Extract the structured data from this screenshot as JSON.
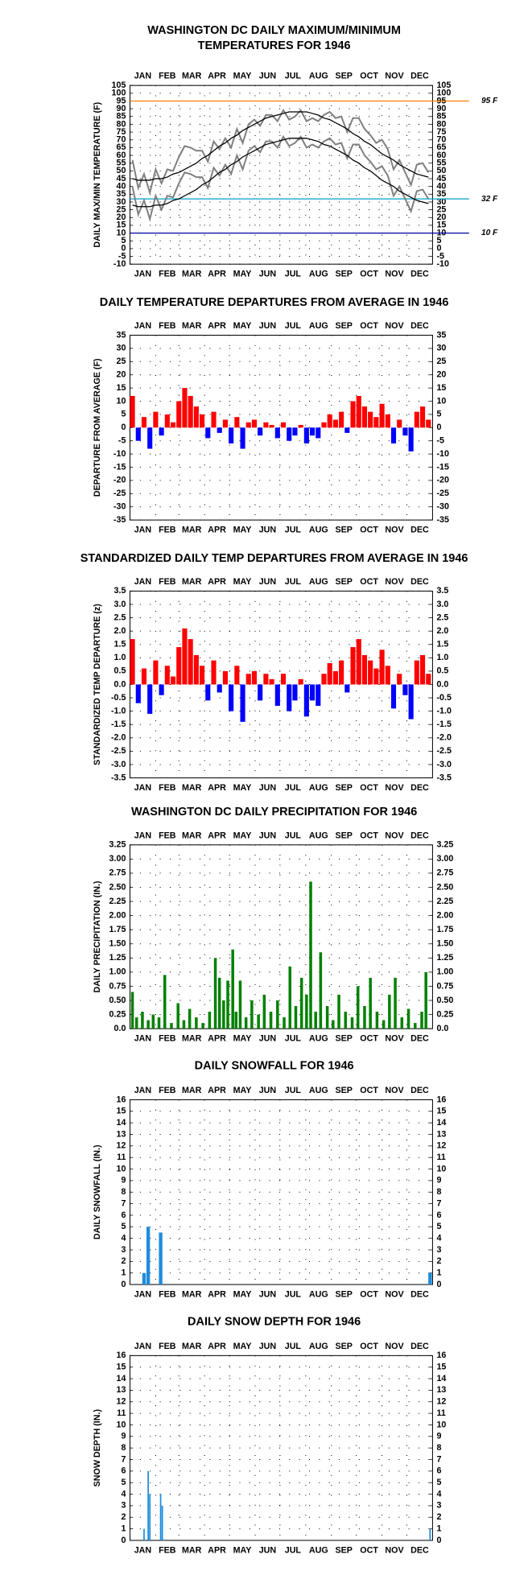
{
  "chart_data": [
    {
      "type": "line",
      "title": [
        "WASHINGTON DC DAILY MAXIMUM/MINIMUM",
        "TEMPERATURES FOR 1946"
      ],
      "y_label": "DAILY MAX/MIN TEMPERATURE (F)",
      "categories": [
        "JAN",
        "FEB",
        "MAR",
        "APR",
        "MAY",
        "JUN",
        "JUL",
        "AUG",
        "SEP",
        "OCT",
        "NOV",
        "DEC"
      ],
      "xlim": [
        0,
        365
      ],
      "x": [
        3,
        10,
        17,
        24,
        31,
        38,
        45,
        52,
        59,
        66,
        73,
        80,
        87,
        94,
        101,
        108,
        115,
        122,
        129,
        136,
        143,
        150,
        157,
        164,
        171,
        178,
        185,
        192,
        199,
        206,
        213,
        220,
        227,
        234,
        241,
        248,
        255,
        262,
        269,
        276,
        283,
        290,
        297,
        304,
        311,
        318,
        325,
        332,
        339,
        346,
        353,
        360
      ],
      "series": [
        {
          "color": "#808080",
          "values": [
            57,
            39,
            48,
            36,
            51,
            42,
            51,
            50,
            59,
            66,
            65,
            63,
            63,
            56,
            69,
            64,
            71,
            65,
            77,
            68,
            80,
            83,
            79,
            86,
            86,
            82,
            89,
            83,
            85,
            89,
            82,
            84,
            82,
            86,
            88,
            84,
            85,
            75,
            84,
            84,
            77,
            73,
            68,
            70,
            64,
            51,
            57,
            49,
            41,
            54,
            55,
            49
          ]
        },
        {
          "color": "#808080",
          "values": [
            40,
            22,
            31,
            19,
            34,
            25,
            34,
            33,
            42,
            49,
            48,
            46,
            46,
            39,
            52,
            47,
            54,
            48,
            60,
            51,
            63,
            66,
            62,
            69,
            69,
            65,
            72,
            66,
            68,
            72,
            65,
            67,
            65,
            69,
            71,
            67,
            68,
            58,
            67,
            67,
            60,
            56,
            51,
            53,
            47,
            34,
            40,
            32,
            24,
            37,
            38,
            32
          ]
        },
        {
          "color": "#000000",
          "values": [
            45,
            44,
            44,
            44,
            45,
            45,
            46,
            48,
            49,
            51,
            53,
            55,
            58,
            60,
            63,
            66,
            68,
            71,
            73,
            76,
            78,
            80,
            82,
            84,
            85,
            86,
            87,
            88,
            88,
            88,
            88,
            87,
            86,
            84,
            83,
            81,
            79,
            77,
            74,
            72,
            69,
            67,
            64,
            61,
            59,
            57,
            54,
            52,
            50,
            48,
            47,
            46
          ]
        },
        {
          "color": "#000000",
          "values": [
            28,
            27,
            27,
            27,
            28,
            28,
            29,
            31,
            32,
            34,
            36,
            38,
            41,
            43,
            46,
            49,
            51,
            54,
            56,
            59,
            61,
            63,
            65,
            67,
            68,
            69,
            70,
            71,
            71,
            71,
            71,
            70,
            69,
            67,
            66,
            64,
            62,
            60,
            57,
            55,
            52,
            50,
            47,
            44,
            42,
            40,
            37,
            35,
            33,
            31,
            30,
            29
          ]
        }
      ],
      "reference_lines": [
        {
          "value": 95,
          "label": "95 F",
          "color": "#ff8000"
        },
        {
          "value": 32,
          "label": "32 F",
          "color": "#00a0c8"
        },
        {
          "value": 10,
          "label": "10 F",
          "color": "#0000a0"
        }
      ],
      "ylim": [
        -10,
        105
      ],
      "yticks": [
        -10,
        -5,
        0,
        5,
        10,
        15,
        20,
        25,
        30,
        35,
        40,
        45,
        50,
        55,
        60,
        65,
        70,
        75,
        80,
        85,
        90,
        95,
        100,
        105
      ],
      "grid": true
    },
    {
      "type": "bar",
      "title": "DAILY TEMPERATURE DEPARTURES FROM AVERAGE IN 1946",
      "y_label": "DEPARTURE FROM AVERAGE (F)",
      "categories": [
        "JAN",
        "FEB",
        "MAR",
        "APR",
        "MAY",
        "JUN",
        "JUL",
        "AUG",
        "SEP",
        "OCT",
        "NOV",
        "DEC"
      ],
      "xlim": [
        0,
        365
      ],
      "x": [
        3,
        10,
        17,
        24,
        31,
        38,
        45,
        52,
        59,
        66,
        73,
        80,
        87,
        94,
        101,
        108,
        115,
        122,
        129,
        136,
        143,
        150,
        157,
        164,
        171,
        178,
        185,
        192,
        199,
        206,
        213,
        220,
        227,
        234,
        241,
        248,
        255,
        262,
        269,
        276,
        283,
        290,
        297,
        304,
        311,
        318,
        325,
        332,
        339,
        346,
        353,
        360
      ],
      "values": [
        12,
        -5,
        4,
        -8,
        6,
        -3,
        5,
        2,
        10,
        15,
        12,
        8,
        5,
        -4,
        6,
        -2,
        3,
        -6,
        4,
        -8,
        2,
        3,
        -3,
        2,
        1,
        -4,
        2,
        -5,
        -3,
        1,
        -6,
        -3,
        -4,
        2,
        5,
        3,
        6,
        -2,
        10,
        12,
        8,
        6,
        4,
        9,
        5,
        -6,
        3,
        -3,
        -9,
        6,
        8,
        3
      ],
      "color": "#ff0000",
      "color_negative": "#0000ff",
      "ylim": [
        -35,
        35
      ],
      "yticks": [
        -35,
        -30,
        -25,
        -20,
        -15,
        -10,
        -5,
        0,
        5,
        10,
        15,
        20,
        25,
        30,
        35
      ],
      "grid": true
    },
    {
      "type": "bar",
      "title": "STANDARDIZED DAILY TEMP DEPARTURES FROM AVERAGE IN 1946",
      "y_label": "STANDARDIZED TEMP DEPARTURE (z)",
      "categories": [
        "JAN",
        "FEB",
        "MAR",
        "APR",
        "MAY",
        "JUN",
        "JUL",
        "AUG",
        "SEP",
        "OCT",
        "NOV",
        "DEC"
      ],
      "xlim": [
        0,
        365
      ],
      "x": [
        3,
        10,
        17,
        24,
        31,
        38,
        45,
        52,
        59,
        66,
        73,
        80,
        87,
        94,
        101,
        108,
        115,
        122,
        129,
        136,
        143,
        150,
        157,
        164,
        171,
        178,
        185,
        192,
        199,
        206,
        213,
        220,
        227,
        234,
        241,
        248,
        255,
        262,
        269,
        276,
        283,
        290,
        297,
        304,
        311,
        318,
        325,
        332,
        339,
        346,
        353,
        360
      ],
      "values": [
        1.7,
        -0.7,
        0.6,
        -1.1,
        0.9,
        -0.4,
        0.7,
        0.3,
        1.4,
        2.1,
        1.7,
        1.1,
        0.7,
        -0.6,
        0.9,
        -0.3,
        0.5,
        -1.0,
        0.7,
        -1.4,
        0.4,
        0.5,
        -0.6,
        0.4,
        0.2,
        -0.8,
        0.4,
        -1.0,
        -0.6,
        0.2,
        -1.2,
        -0.6,
        -0.8,
        0.4,
        0.8,
        0.5,
        0.9,
        -0.3,
        1.4,
        1.7,
        1.1,
        0.9,
        0.6,
        1.3,
        0.7,
        -0.9,
        0.4,
        -0.4,
        -1.3,
        0.9,
        1.1,
        0.4
      ],
      "color": "#ff0000",
      "color_negative": "#0000ff",
      "ylim": [
        -3.5,
        3.5
      ],
      "yticks": [
        -3.5,
        {
          "value": -3,
          "label": "-3.0"
        },
        -2.5,
        {
          "value": -2,
          "label": "-2.0"
        },
        -1.5,
        {
          "value": -1,
          "label": "-1.0"
        },
        -0.5,
        {
          "value": 0,
          "label": "0.0"
        },
        0.5,
        {
          "value": 1,
          "label": "1.0"
        },
        1.5,
        {
          "value": 2,
          "label": "2.0"
        },
        2.5,
        {
          "value": 3,
          "label": "3.0"
        },
        3.5
      ],
      "grid": true
    },
    {
      "type": "bar",
      "title": "WASHINGTON DC DAILY PRECIPITATION FOR 1946",
      "y_label": "DAILY PRECIPITATION (IN.)",
      "categories": [
        "JAN",
        "FEB",
        "MAR",
        "APR",
        "MAY",
        "JUN",
        "JUL",
        "AUG",
        "SEP",
        "OCT",
        "NOV",
        "DEC"
      ],
      "xlim": [
        0,
        365
      ],
      "x": [
        3,
        8,
        15,
        22,
        28,
        35,
        42,
        50,
        58,
        65,
        72,
        80,
        88,
        96,
        103,
        108,
        113,
        118,
        124,
        128,
        133,
        140,
        147,
        155,
        162,
        170,
        178,
        186,
        193,
        200,
        207,
        213,
        218,
        224,
        230,
        238,
        245,
        252,
        260,
        268,
        275,
        283,
        290,
        298,
        306,
        313,
        320,
        328,
        336,
        344,
        352,
        357
      ],
      "values": [
        0.65,
        0.2,
        0.3,
        0.15,
        0.25,
        0.2,
        0.95,
        0.1,
        0.45,
        0.15,
        0.35,
        0.2,
        0.1,
        0.3,
        1.25,
        0.9,
        0.5,
        0.85,
        1.4,
        0.3,
        0.85,
        0.2,
        0.5,
        0.25,
        0.6,
        0.3,
        0.5,
        0.2,
        1.1,
        0.4,
        0.9,
        0.6,
        2.6,
        0.3,
        1.35,
        0.4,
        0.15,
        0.6,
        0.3,
        0.2,
        0.75,
        0.4,
        0.9,
        0.3,
        0.15,
        0.6,
        0.9,
        0.2,
        0.35,
        0.1,
        0.3,
        1.0
      ],
      "color": "#008000",
      "ylim": [
        0,
        3.25
      ],
      "yticks": [
        {
          "value": 0,
          "label": "0.0"
        },
        0.25,
        {
          "value": 0.5,
          "label": "0.50"
        },
        0.75,
        {
          "value": 1,
          "label": "1.00"
        },
        1.25,
        {
          "value": 1.5,
          "label": "1.50"
        },
        1.75,
        {
          "value": 2,
          "label": "2.00"
        },
        2.25,
        {
          "value": 2.5,
          "label": "2.50"
        },
        2.75,
        {
          "value": 3,
          "label": "3.00"
        },
        3.25
      ],
      "grid": true
    },
    {
      "type": "bar",
      "title": "DAILY SNOWFALL FOR 1946",
      "y_label": "DAILY SNOWFALL (IN.)",
      "categories": [
        "JAN",
        "FEB",
        "MAR",
        "APR",
        "MAY",
        "JUN",
        "JUL",
        "AUG",
        "SEP",
        "OCT",
        "NOV",
        "DEC"
      ],
      "xlim": [
        0,
        365
      ],
      "x": [
        17,
        22,
        37,
        362
      ],
      "values": [
        1,
        5,
        4.5,
        1
      ],
      "color": "#1e8cdc",
      "ylim": [
        0,
        16
      ],
      "yticks": [
        0,
        1,
        2,
        3,
        4,
        5,
        6,
        7,
        8,
        9,
        10,
        11,
        12,
        13,
        14,
        15,
        16
      ],
      "grid": true
    },
    {
      "type": "bar",
      "title": "DAILY SNOW DEPTH FOR 1946",
      "y_label": "SNOW DEPTH (IN.)",
      "categories": [
        "JAN",
        "FEB",
        "MAR",
        "APR",
        "MAY",
        "JUN",
        "JUL",
        "AUG",
        "SEP",
        "OCT",
        "NOV",
        "DEC"
      ],
      "xlim": [
        0,
        365
      ],
      "x": [
        17,
        22,
        24,
        37,
        39,
        362
      ],
      "values": [
        1,
        6,
        4,
        4,
        3,
        1
      ],
      "color": "#1e8cdc",
      "ylim": [
        0,
        16
      ],
      "yticks": [
        0,
        1,
        2,
        3,
        4,
        5,
        6,
        7,
        8,
        9,
        10,
        11,
        12,
        13,
        14,
        15,
        16
      ],
      "grid": true
    }
  ]
}
